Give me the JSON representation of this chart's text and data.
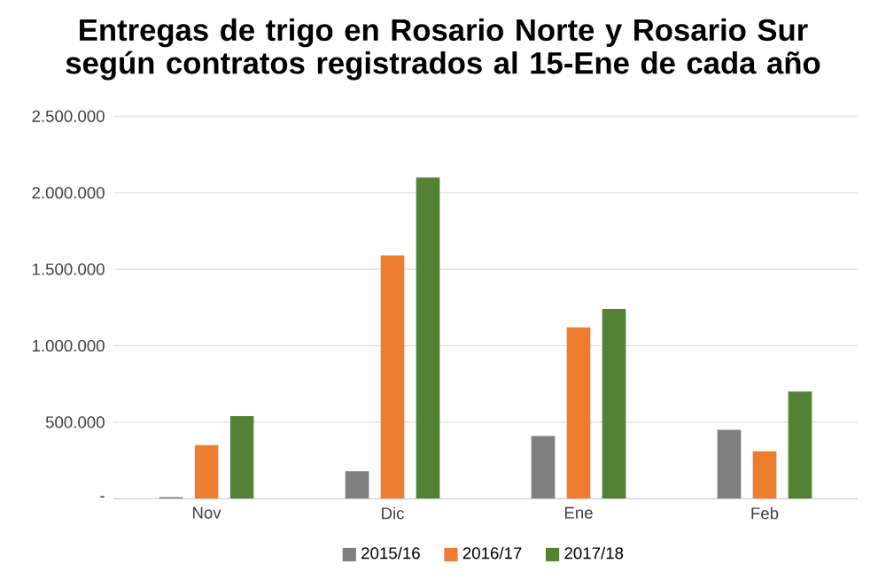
{
  "chart_data": {
    "type": "bar",
    "title": "Entregas de trigo en Rosario Norte y Rosario Sur\nsegún contratos registrados al 15-Ene de cada año",
    "categories": [
      "Nov",
      "Dic",
      "Ene",
      "Feb"
    ],
    "series": [
      {
        "name": "2015/16",
        "color": "#7f7f7f",
        "values": [
          10000,
          180000,
          410000,
          450000
        ]
      },
      {
        "name": "2016/17",
        "color": "#ed7d31",
        "values": [
          350000,
          1590000,
          1120000,
          310000
        ]
      },
      {
        "name": "2017/18",
        "color": "#548235",
        "values": [
          540000,
          2100000,
          1240000,
          700000
        ]
      }
    ],
    "ylim": [
      0,
      2500000
    ],
    "yticks": [
      {
        "value": 0,
        "label": "-"
      },
      {
        "value": 500000,
        "label": "500.000"
      },
      {
        "value": 1000000,
        "label": "1.000.000"
      },
      {
        "value": 1500000,
        "label": "1.500.000"
      },
      {
        "value": 2000000,
        "label": "2.000.000"
      },
      {
        "value": 2500000,
        "label": "2.500.000"
      }
    ],
    "grid": "y",
    "legend": "bottom"
  }
}
